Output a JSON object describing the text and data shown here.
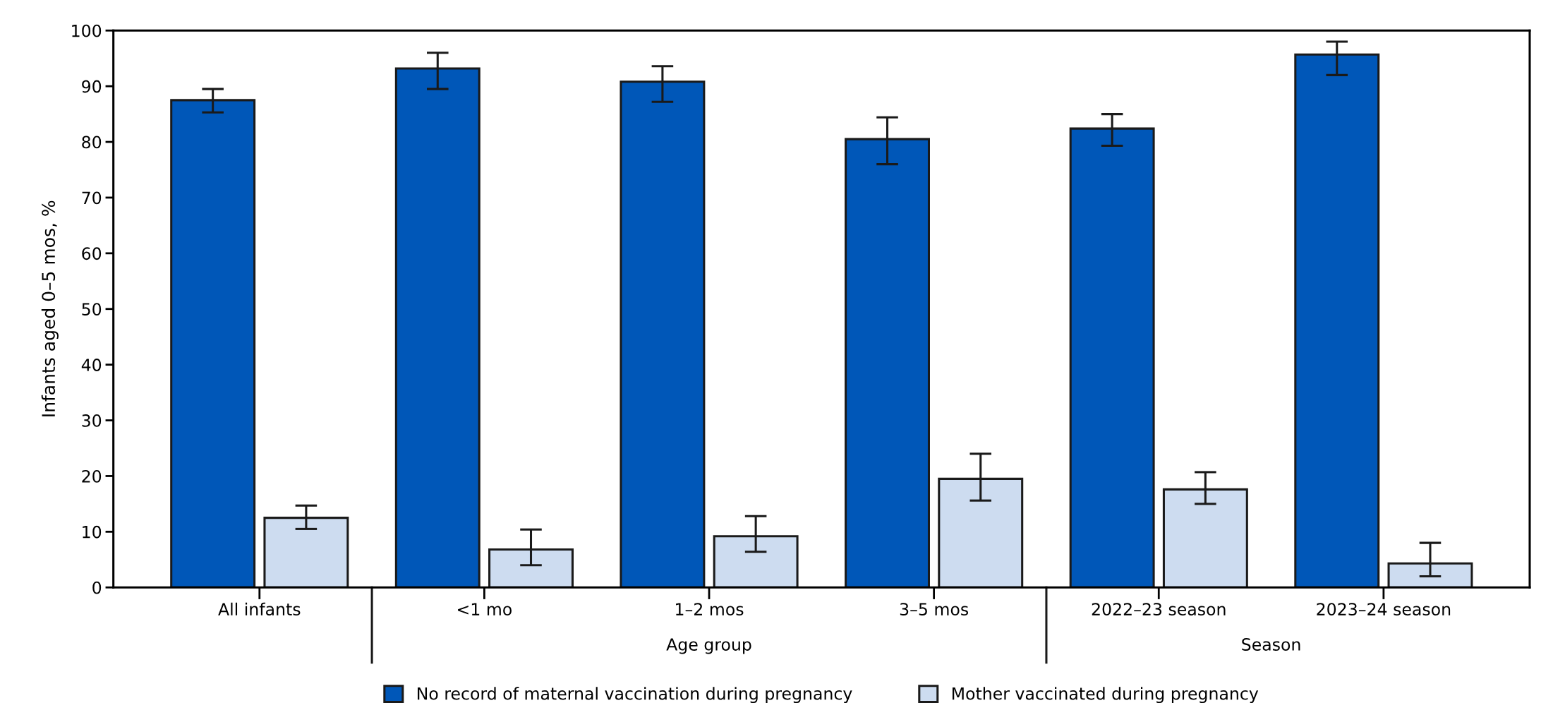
{
  "chart_data": {
    "type": "bar",
    "ylabel": "Infants aged 0–5 mos, %",
    "categories": [
      "All infants",
      "<1 mo",
      "1–2 mos",
      "3–5 mos",
      "2022–23 season",
      "2023–24 season"
    ],
    "series": [
      {
        "name": "No record of maternal vaccination during pregnancy",
        "color": "#0057b8",
        "values": [
          87.5,
          93.2,
          90.8,
          80.5,
          82.4,
          95.7
        ],
        "errors": [
          [
            85.3,
            89.5
          ],
          [
            89.5,
            96.0
          ],
          [
            87.2,
            93.6
          ],
          [
            76.0,
            84.4
          ],
          [
            79.3,
            85.0
          ],
          [
            92.0,
            98.0
          ]
        ]
      },
      {
        "name": "Mother vaccinated during pregnancy",
        "color": "#cddcf0",
        "values": [
          12.5,
          6.8,
          9.2,
          19.5,
          17.6,
          4.3
        ],
        "errors": [
          [
            10.5,
            14.7
          ],
          [
            4.0,
            10.4
          ],
          [
            6.4,
            12.8
          ],
          [
            15.6,
            24.0
          ],
          [
            15.0,
            20.7
          ],
          [
            2.0,
            8.0
          ]
        ]
      }
    ],
    "annotations": [
      "Age group",
      "Season"
    ],
    "ylim": [
      0,
      100
    ],
    "yticks": [
      0,
      10,
      20,
      30,
      40,
      50,
      60,
      70,
      80,
      90,
      100
    ],
    "grid": false,
    "legend": "bottom"
  }
}
